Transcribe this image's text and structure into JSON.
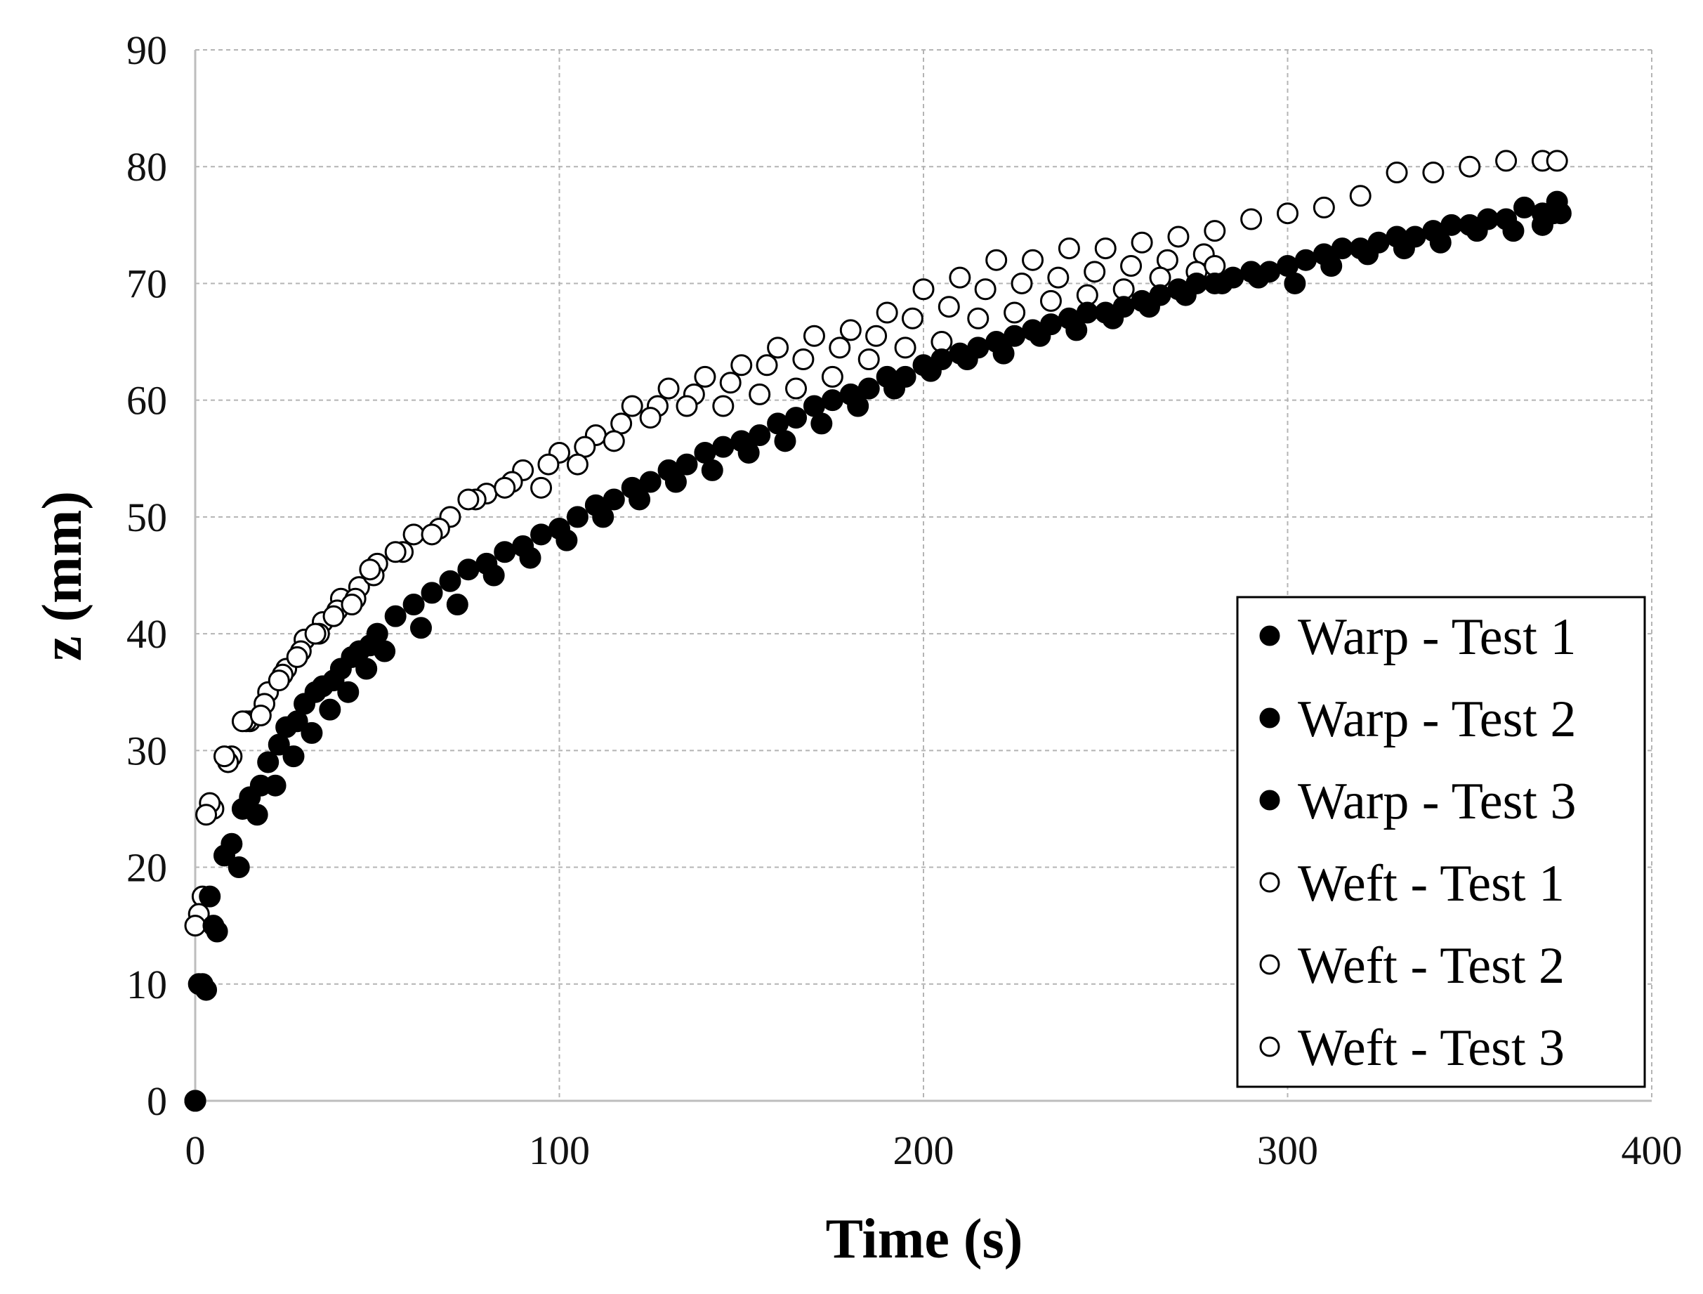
{
  "chart_data": {
    "type": "scatter",
    "title": "",
    "xlabel": "Time (s)",
    "ylabel": "z (mm)",
    "xlim": [
      0,
      400
    ],
    "ylim": [
      0,
      90
    ],
    "xticks": [
      "0",
      "100",
      "200",
      "300",
      "400"
    ],
    "yticks": [
      "0",
      "10",
      "20",
      "30",
      "40",
      "50",
      "60",
      "70",
      "80",
      "90"
    ],
    "grid": true,
    "legend_position": "bottom-right",
    "colors": {
      "ink": "#000000",
      "grid": "#b4b4b4",
      "open_fill": "#ffffff"
    },
    "series": [
      {
        "name": "Warp - Test 1",
        "marker": "filled-circle",
        "x": [
          0,
          2,
          5,
          10,
          15,
          20,
          25,
          30,
          35,
          40,
          45,
          50,
          60,
          70,
          80,
          90,
          100,
          110,
          120,
          130,
          140,
          150,
          160,
          170,
          180,
          190,
          200,
          210,
          220,
          230,
          240,
          250,
          260,
          270,
          280,
          290,
          300,
          310,
          320,
          330,
          340,
          350,
          360,
          370,
          374
        ],
        "y": [
          0,
          10,
          15,
          22,
          26,
          29,
          32,
          34,
          35.5,
          37,
          38.5,
          40,
          42.5,
          44.5,
          46,
          47.5,
          49,
          51,
          52.5,
          54,
          55.5,
          56.5,
          58,
          59.5,
          60.5,
          62,
          63,
          64,
          65,
          66,
          67,
          67.5,
          68.5,
          69.5,
          70,
          71,
          71.5,
          72.5,
          73,
          74,
          74.5,
          75,
          75.5,
          76,
          77
        ]
      },
      {
        "name": "Warp - Test 2",
        "marker": "filled-circle",
        "x": [
          0,
          1,
          4,
          8,
          13,
          18,
          23,
          28,
          33,
          38,
          43,
          48,
          55,
          65,
          75,
          85,
          95,
          105,
          115,
          125,
          135,
          145,
          155,
          165,
          175,
          185,
          195,
          205,
          215,
          225,
          235,
          245,
          255,
          265,
          275,
          285,
          295,
          305,
          315,
          325,
          335,
          345,
          355,
          365,
          373
        ],
        "y": [
          0,
          10,
          17.5,
          21,
          25,
          27,
          30.5,
          32.5,
          35,
          36,
          38,
          39,
          41.5,
          43.5,
          45.5,
          47,
          48.5,
          50,
          51.5,
          53,
          54.5,
          56,
          57,
          58.5,
          60,
          61,
          62,
          63.5,
          64.5,
          65.5,
          66.5,
          67.5,
          68,
          69,
          70,
          70.5,
          71,
          72,
          73,
          73.5,
          74,
          75,
          75.5,
          76.5,
          76
        ]
      },
      {
        "name": "Warp - Test 3",
        "marker": "filled-circle",
        "x": [
          0,
          3,
          6,
          12,
          17,
          22,
          27,
          32,
          37,
          42,
          47,
          52,
          62,
          72,
          82,
          92,
          102,
          112,
          122,
          132,
          142,
          152,
          162,
          172,
          182,
          192,
          202,
          212,
          222,
          232,
          242,
          252,
          262,
          272,
          282,
          292,
          302,
          312,
          322,
          332,
          342,
          352,
          362,
          370,
          375
        ],
        "y": [
          0,
          9.5,
          14.5,
          20,
          24.5,
          27,
          29.5,
          31.5,
          33.5,
          35,
          37,
          38.5,
          40.5,
          42.5,
          45,
          46.5,
          48,
          50,
          51.5,
          53,
          54,
          55.5,
          56.5,
          58,
          59.5,
          61,
          62.5,
          63.5,
          64,
          65.5,
          66,
          67,
          68,
          69,
          70,
          70.5,
          70,
          71.5,
          72.5,
          73,
          73.5,
          74.5,
          74.5,
          75,
          76
        ]
      },
      {
        "name": "Weft - Test 1",
        "marker": "open-circle",
        "x": [
          2,
          5,
          10,
          15,
          20,
          25,
          30,
          35,
          40,
          45,
          50,
          60,
          70,
          80,
          90,
          100,
          110,
          120,
          130,
          140,
          150,
          160,
          170,
          180,
          190,
          200,
          210,
          220,
          230,
          240,
          250,
          260,
          270,
          280,
          290,
          300,
          310,
          320,
          330,
          340,
          350,
          360,
          370,
          374
        ],
        "y": [
          17.5,
          25,
          29.5,
          32.5,
          35,
          37,
          39.5,
          41,
          43,
          44,
          46,
          48.5,
          50,
          52,
          54,
          55.5,
          57,
          59.5,
          61,
          62,
          63,
          64.5,
          65.5,
          66,
          67.5,
          69.5,
          70.5,
          72,
          72,
          73,
          73,
          73.5,
          74,
          74.5,
          75.5,
          76,
          76.5,
          77.5,
          79.5,
          79.5,
          80,
          80.5,
          80.5,
          80.5
        ]
      },
      {
        "name": "Weft - Test 2",
        "marker": "open-circle",
        "x": [
          1,
          4,
          9,
          14,
          19,
          24,
          29,
          34,
          39,
          44,
          49,
          57,
          67,
          77,
          87,
          97,
          107,
          117,
          127,
          137,
          147,
          157,
          167,
          177,
          187,
          197,
          207,
          217,
          227,
          237,
          247,
          257,
          267,
          277
        ],
        "y": [
          16,
          25.5,
          29,
          32.5,
          34,
          36.5,
          38.5,
          40,
          42,
          43,
          45,
          47,
          49,
          51.5,
          53,
          54.5,
          56,
          58,
          59.5,
          60.5,
          61.5,
          63,
          63.5,
          64.5,
          65.5,
          67,
          68,
          69.5,
          70,
          70.5,
          71,
          71.5,
          72,
          72.5
        ]
      },
      {
        "name": "Weft - Test 3",
        "marker": "open-circle",
        "x": [
          0,
          3,
          8,
          13,
          18,
          23,
          28,
          33,
          38,
          43,
          48,
          55,
          65,
          75,
          85,
          95,
          105,
          115,
          125,
          135,
          145,
          155,
          165,
          175,
          185,
          195,
          205,
          215,
          225,
          235,
          245,
          255,
          265,
          275,
          280
        ],
        "y": [
          15,
          24.5,
          29.5,
          32.5,
          33,
          36,
          38,
          40,
          41.5,
          42.5,
          45.5,
          47,
          48.5,
          51.5,
          52.5,
          52.5,
          54.5,
          56.5,
          58.5,
          59.5,
          59.5,
          60.5,
          61,
          62,
          63.5,
          64.5,
          65,
          67,
          67.5,
          68.5,
          69,
          69.5,
          70.5,
          71,
          71.5
        ]
      }
    ]
  }
}
